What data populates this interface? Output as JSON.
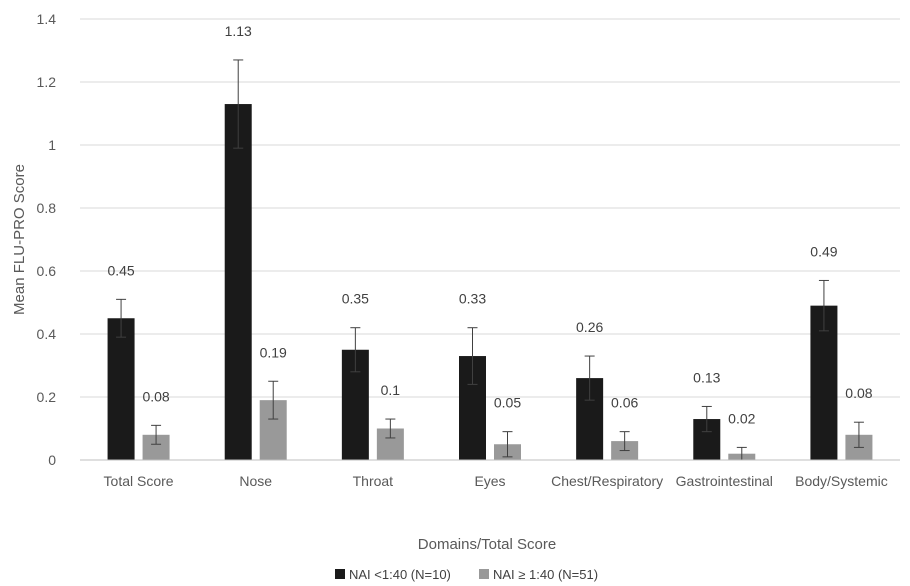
{
  "chart_data": {
    "type": "bar",
    "title": "",
    "xlabel": "Domains/Total Score",
    "ylabel": "Mean FLU-PRO Score",
    "ylim": [
      0,
      1.4
    ],
    "yticks": [
      0,
      0.2,
      0.4,
      0.6,
      0.8,
      1,
      1.2,
      1.4
    ],
    "grid": true,
    "legend_position": "bottom",
    "categories": [
      "Total Score",
      "Nose",
      "Throat",
      "Eyes",
      "Chest/Respiratory",
      "Gastrointestinal",
      "Body/Systemic"
    ],
    "series": [
      {
        "name": "NAI <1:40 (N=10)",
        "color": "#1a1a1a",
        "values": [
          0.45,
          1.13,
          0.35,
          0.33,
          0.26,
          0.13,
          0.49
        ],
        "labels": [
          "0.45",
          "1.13",
          "0.35",
          "0.33",
          "0.26",
          "0.13",
          "0.49"
        ],
        "error": [
          0.06,
          0.14,
          0.07,
          0.09,
          0.07,
          0.04,
          0.08
        ]
      },
      {
        "name": "NAI ≥ 1:40 (N=51)",
        "color": "#999999",
        "values": [
          0.08,
          0.19,
          0.1,
          0.05,
          0.06,
          0.02,
          0.08
        ],
        "labels": [
          "0.08",
          "0.19",
          "0.1",
          "0.05",
          "0.06",
          "0.02",
          "0.08"
        ],
        "error": [
          0.03,
          0.06,
          0.03,
          0.04,
          0.03,
          0.02,
          0.04
        ]
      }
    ]
  }
}
